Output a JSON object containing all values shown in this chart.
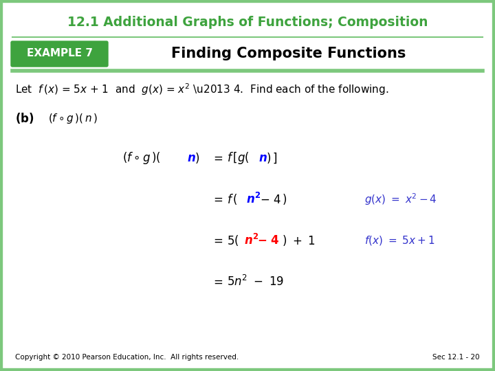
{
  "title": "12.1 Additional Graphs of Functions; Composition",
  "title_color": "#3EA33E",
  "title_fontsize": 13.5,
  "example_label": "EXAMPLE 7",
  "example_bg": "#3EA33E",
  "example_text_color": "#FFFFFF",
  "subtitle": "Finding Composite Functions",
  "subtitle_fontsize": 15,
  "green_line_color": "#7DC87D",
  "background_color": "#FFFFFF",
  "footer_left": "Copyright © 2010 Pearson Education, Inc.  All rights reserved.",
  "footer_right": "Sec 12.1 - 20",
  "footer_fontsize": 7.5,
  "border_color": "#7DC87D"
}
